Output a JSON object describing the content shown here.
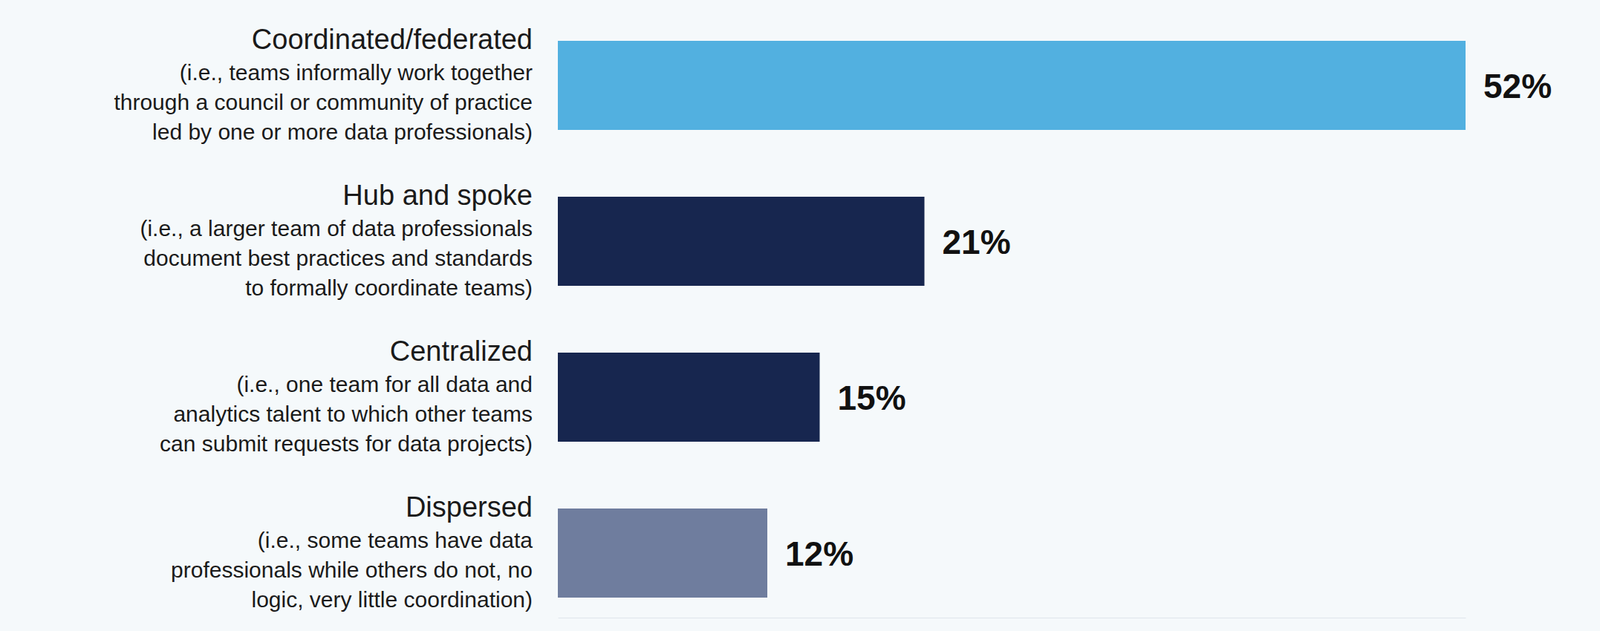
{
  "chart_data": {
    "type": "bar",
    "orientation": "horizontal",
    "categories": [
      "Coordinated/federated",
      "Hub and spoke",
      "Centralized",
      "Dispersed"
    ],
    "descriptions": [
      [
        "(i.e., teams informally work together",
        "through a council or community of practice",
        "led by one or more data professionals)"
      ],
      [
        "(i.e., a larger team of data professionals",
        "document best practices and standards",
        "to formally coordinate teams)"
      ],
      [
        "(i.e., one team for all data and",
        "analytics talent to which other teams",
        "can submit requests for data projects)"
      ],
      [
        "(i.e., some teams have data",
        "professionals while others do not, no",
        "logic, very little coordination)"
      ]
    ],
    "values": [
      52,
      21,
      15,
      12
    ],
    "value_labels": [
      "52%",
      "21%",
      "15%",
      "12%"
    ],
    "colors": [
      "#52b0e0",
      "#17264f",
      "#17264f",
      "#6f7d9e"
    ],
    "xlim": [
      0,
      52
    ],
    "data_labels": true,
    "tick_labels": false,
    "grid": false
  }
}
